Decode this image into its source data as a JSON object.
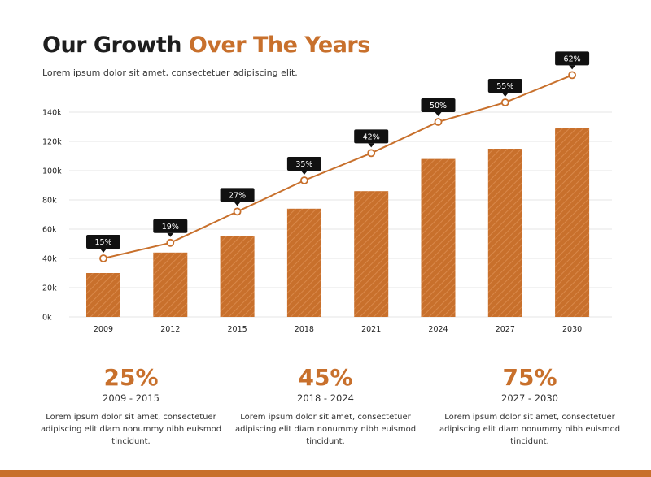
{
  "header": {
    "title_main": "Our Growth ",
    "title_accent": "Over The Years",
    "subtitle": "Lorem ipsum dolor sit amet, consectetuer adipiscing elit."
  },
  "colors": {
    "accent": "#c8702c",
    "bar": "#c8702c",
    "label_bg": "#111111",
    "grid": "#e4e4e4"
  },
  "chart_data": {
    "type": "bar",
    "categories": [
      "2009",
      "2012",
      "2015",
      "2018",
      "2021",
      "2024",
      "2027",
      "2030"
    ],
    "series": [
      {
        "type": "bar",
        "values": [
          30000,
          44000,
          55000,
          74000,
          86000,
          108000,
          115000,
          129000
        ]
      },
      {
        "type": "line",
        "values": [
          15,
          19,
          27,
          35,
          42,
          50,
          55,
          62
        ],
        "labels": [
          "15%",
          "19%",
          "27%",
          "35%",
          "42%",
          "50%",
          "55%",
          "62%"
        ]
      }
    ],
    "ylim": [
      0,
      140000
    ],
    "yticks": [
      0,
      20000,
      40000,
      60000,
      80000,
      100000,
      120000,
      140000
    ],
    "ytick_labels": [
      "0k",
      "20k",
      "40k",
      "60k",
      "80k",
      "100k",
      "120k",
      "140k"
    ],
    "line_ylim": [
      0,
      70
    ],
    "grid": true
  },
  "stats": [
    {
      "value": "25%",
      "range": "2009 - 2015",
      "description": "Lorem ipsum dolor sit amet, consectetuer adipiscing elit diam nonummy nibh euismod tincidunt."
    },
    {
      "value": "45%",
      "range": "2018 - 2024",
      "description": "Lorem ipsum dolor sit amet, consectetuer adipiscing elit diam nonummy nibh euismod tincidunt."
    },
    {
      "value": "75%",
      "range": "2027 - 2030",
      "description": "Lorem ipsum dolor sit amet, consectetuer adipiscing elit diam nonummy nibh euismod tincidunt."
    }
  ]
}
